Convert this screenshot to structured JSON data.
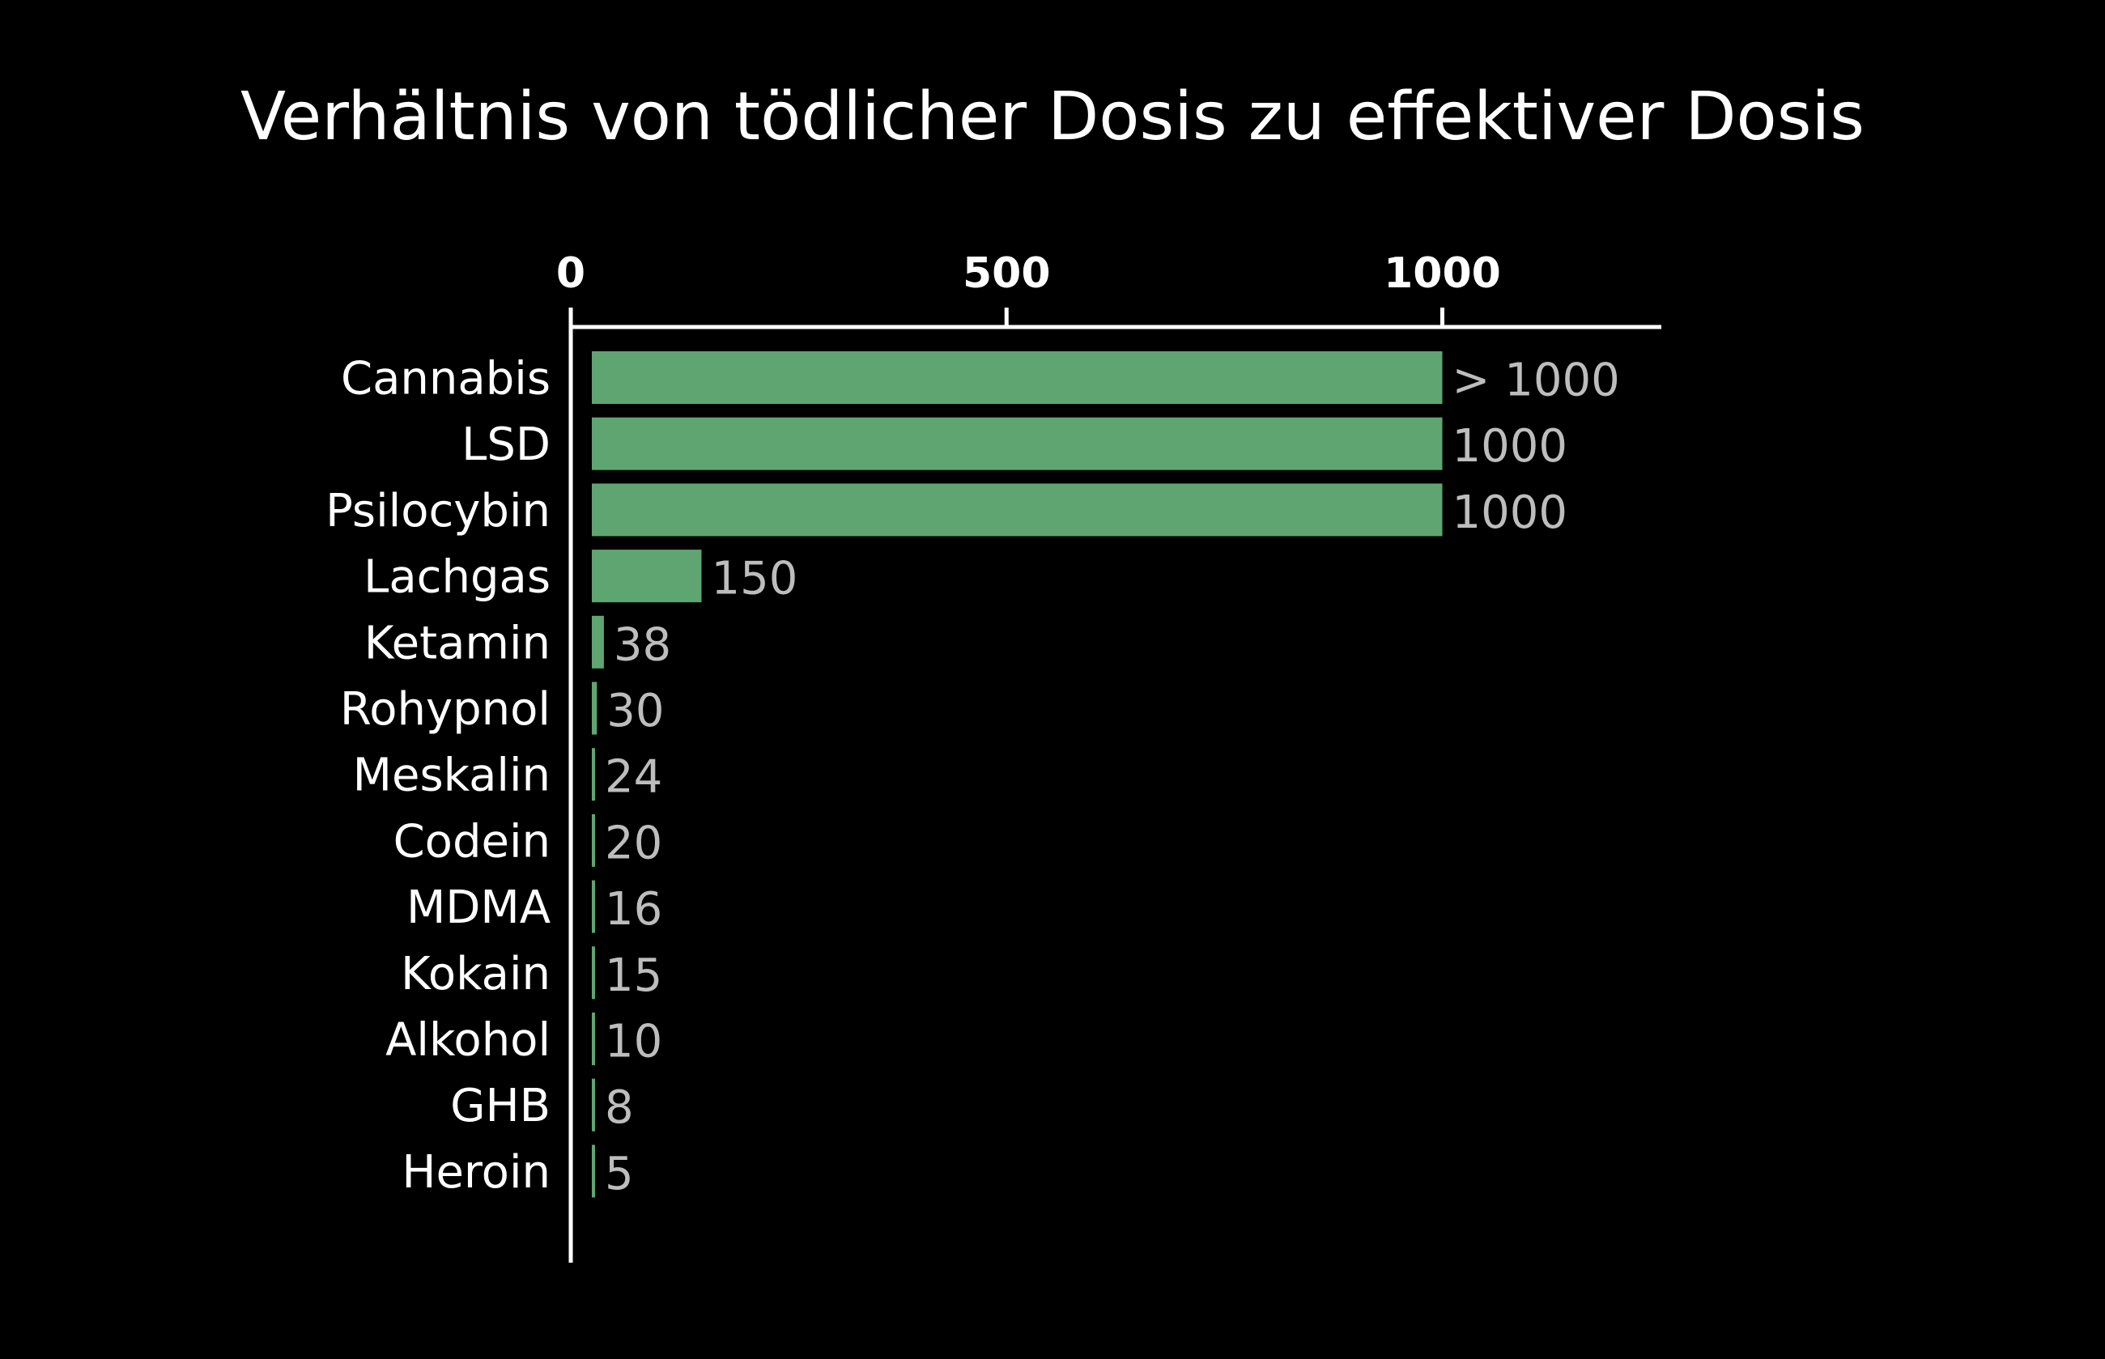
{
  "chart_data": {
    "type": "bar",
    "orientation": "horizontal",
    "title": "Verhältnis von tödlicher Dosis zu effektiver Dosis",
    "xlabel": "",
    "ylabel": "",
    "xlim": [
      0,
      1250
    ],
    "x_axis_position": "top",
    "x_ticks": [
      {
        "value": 0,
        "label": "0"
      },
      {
        "value": 500,
        "label": "500"
      },
      {
        "value": 1000,
        "label": "1000"
      }
    ],
    "grid": false,
    "legend": "none",
    "categories": [
      "Cannabis",
      "LSD",
      "Psilocybin",
      "Lachgas",
      "Ketamin",
      "Rohypnol",
      "Meskalin",
      "Codein",
      "MDMA",
      "Kokain",
      "Alkohol",
      "GHB",
      "Heroin"
    ],
    "values": [
      1000,
      1000,
      1000,
      150,
      38,
      30,
      24,
      20,
      16,
      15,
      10,
      8,
      5
    ],
    "value_labels": [
      "> 1000",
      "1000",
      "1000",
      "150",
      "38",
      "30",
      "24",
      "20",
      "16",
      "15",
      "10",
      "8",
      "5"
    ],
    "colors": {
      "bar": "#5fa572",
      "background": "#000000",
      "axis": "#ffffff",
      "title": "#ffffff",
      "category_label": "#ffffff",
      "value_label": "#bdbdbd"
    }
  }
}
